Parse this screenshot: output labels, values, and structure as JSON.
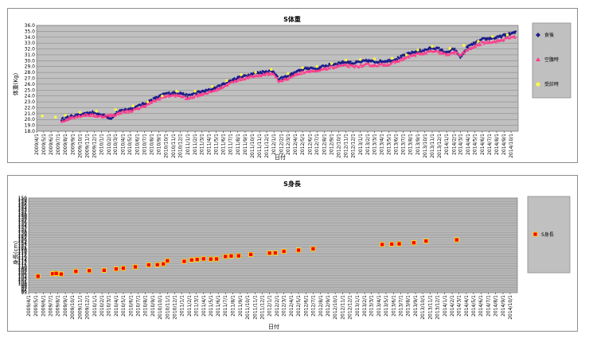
{
  "colors": {
    "plot_bg": "#c0c0c0",
    "grid": "#7f7f7f",
    "after_meal": "#1c1c8a",
    "fasting": "#ff3c8c",
    "visit": "#ffff3c",
    "height_fill": "#ff0000",
    "height_border": "#ffd700",
    "legend_bg": "#c0c0c0"
  },
  "x_tick_labels": [
    "2009/4/1",
    "2009/5/1",
    "2009/6/1",
    "2009/7/1",
    "2009/8/1",
    "2009/9/1",
    "2009/10/1",
    "2009/11/1",
    "2009/12/1",
    "2010/1/1",
    "2010/2/1",
    "2010/3/1",
    "2010/4/1",
    "2010/5/1",
    "2010/6/1",
    "2010/7/1",
    "2010/8/1",
    "2010/9/1",
    "2010/10/1",
    "2010/11/1",
    "2010/12/1",
    "2011/1/1",
    "2011/2/1",
    "2011/3/1",
    "2011/4/1",
    "2011/5/1",
    "2011/6/1",
    "2011/7/1",
    "2011/8/1",
    "2011/9/1",
    "2011/10/1",
    "2011/11/1",
    "2011/12/1",
    "2012/1/1",
    "2012/2/1",
    "2012/3/1",
    "2012/4/1",
    "2012/5/1",
    "2012/6/1",
    "2012/7/1",
    "2012/8/1",
    "2012/9/1",
    "2012/10/1",
    "2012/11/1",
    "2012/12/1",
    "2013/1/1",
    "2013/2/1",
    "2013/3/1",
    "2013/4/1",
    "2013/5/1",
    "2013/6/1",
    "2013/7/1",
    "2013/8/1",
    "2013/9/1",
    "2013/10/1",
    "2013/11/1",
    "2013/12/1",
    "2014/1/1",
    "2014/2/1",
    "2014/3/1",
    "2014/4/1",
    "2014/5/1",
    "2014/6/1",
    "2014/7/1",
    "2014/8/1",
    "2014/9/1",
    "2014/10/1"
  ],
  "chart_data": [
    {
      "type": "scatter",
      "title": "S体重",
      "xlabel": "日付",
      "ylabel": "体重(Kg)",
      "ylim": [
        18.0,
        36.0
      ],
      "y_ticks": [
        "18.0",
        "19.0",
        "20.0",
        "21.0",
        "22.0",
        "23.0",
        "24.0",
        "25.0",
        "26.0",
        "27.0",
        "28.0",
        "29.0",
        "30.0",
        "31.0",
        "32.0",
        "33.0",
        "34.0",
        "35.0",
        "36.0"
      ],
      "grid": true,
      "legend_position": "right",
      "x_range": [
        "2009/4/1",
        "2014/10/31"
      ],
      "series": [
        {
          "name": "食後",
          "marker": "diamond",
          "color": "#1c1c8a",
          "anchors": [
            [
              "2009/7/15",
              20.0
            ],
            [
              "2009/9/1",
              20.6
            ],
            [
              "2009/10/15",
              20.8
            ],
            [
              "2009/11/20",
              21.2
            ],
            [
              "2010/1/10",
              20.7
            ],
            [
              "2010/2/10",
              20.2
            ],
            [
              "2010/3/1",
              21.0
            ],
            [
              "2010/4/1",
              21.6
            ],
            [
              "2010/5/1",
              21.8
            ],
            [
              "2010/6/1",
              22.2
            ],
            [
              "2010/7/1",
              22.7
            ],
            [
              "2010/8/1",
              23.3
            ],
            [
              "2010/9/1",
              23.9
            ],
            [
              "2010/10/1",
              24.4
            ],
            [
              "2010/11/1",
              24.5
            ],
            [
              "2010/12/1",
              24.5
            ],
            [
              "2011/1/1",
              24.0
            ],
            [
              "2011/2/1",
              24.5
            ],
            [
              "2011/3/1",
              24.7
            ],
            [
              "2011/4/1",
              25.0
            ],
            [
              "2011/5/1",
              25.4
            ],
            [
              "2011/6/1",
              26.0
            ],
            [
              "2011/7/1",
              26.6
            ],
            [
              "2011/8/1",
              27.1
            ],
            [
              "2011/9/1",
              27.4
            ],
            [
              "2011/10/1",
              27.8
            ],
            [
              "2011/11/1",
              28.0
            ],
            [
              "2011/12/1",
              28.2
            ],
            [
              "2012/1/1",
              28.2
            ],
            [
              "2012/1/20",
              26.8
            ],
            [
              "2012/3/1",
              27.4
            ],
            [
              "2012/4/1",
              28.0
            ],
            [
              "2012/5/1",
              28.5
            ],
            [
              "2012/6/1",
              28.8
            ],
            [
              "2012/7/1",
              28.6
            ],
            [
              "2012/8/1",
              29.1
            ],
            [
              "2012/9/1",
              29.3
            ],
            [
              "2012/10/1",
              29.6
            ],
            [
              "2012/11/1",
              29.8
            ],
            [
              "2012/12/1",
              29.6
            ],
            [
              "2013/1/1",
              29.8
            ],
            [
              "2013/2/1",
              30.0
            ],
            [
              "2013/3/1",
              29.8
            ],
            [
              "2013/4/1",
              29.9
            ],
            [
              "2013/5/1",
              30.0
            ],
            [
              "2013/6/1",
              30.3
            ],
            [
              "2013/7/1",
              30.8
            ],
            [
              "2013/8/1",
              31.3
            ],
            [
              "2013/9/1",
              31.6
            ],
            [
              "2013/10/1",
              31.8
            ],
            [
              "2013/11/1",
              32.2
            ],
            [
              "2013/12/1",
              32.0
            ],
            [
              "2014/1/1",
              31.3
            ],
            [
              "2014/2/1",
              32.0
            ],
            [
              "2014/3/1",
              30.6
            ],
            [
              "2014/4/1",
              32.4
            ],
            [
              "2014/5/1",
              33.0
            ],
            [
              "2014/6/1",
              33.6
            ],
            [
              "2014/7/1",
              33.8
            ],
            [
              "2014/8/1",
              33.9
            ],
            [
              "2014/9/1",
              34.3
            ],
            [
              "2014/10/1",
              34.6
            ],
            [
              "2014/10/20",
              34.8
            ]
          ]
        },
        {
          "name": "空腹時",
          "marker": "triangle",
          "color": "#ff3c8c",
          "anchors": [
            [
              "2009/7/15",
              19.6
            ],
            [
              "2009/9/1",
              20.4
            ],
            [
              "2009/11/1",
              20.8
            ],
            [
              "2010/1/1",
              20.5
            ],
            [
              "2010/3/1",
              20.8
            ],
            [
              "2010/4/1",
              21.3
            ],
            [
              "2010/5/1",
              21.4
            ],
            [
              "2010/6/1",
              21.8
            ],
            [
              "2010/7/1",
              22.3
            ],
            [
              "2010/8/1",
              22.9
            ],
            [
              "2010/9/1",
              23.5
            ],
            [
              "2010/10/1",
              24.0
            ],
            [
              "2010/11/1",
              24.1
            ],
            [
              "2010/12/1",
              24.0
            ],
            [
              "2011/1/1",
              23.5
            ],
            [
              "2011/2/1",
              24.0
            ],
            [
              "2011/3/1",
              24.3
            ],
            [
              "2011/4/1",
              24.6
            ],
            [
              "2011/5/1",
              25.0
            ],
            [
              "2011/6/1",
              25.6
            ],
            [
              "2011/7/1",
              26.2
            ],
            [
              "2011/8/1",
              26.7
            ],
            [
              "2011/9/1",
              27.0
            ],
            [
              "2011/10/1",
              27.3
            ],
            [
              "2011/11/1",
              27.5
            ],
            [
              "2011/12/1",
              27.7
            ],
            [
              "2012/1/1",
              27.8
            ],
            [
              "2012/1/20",
              26.4
            ],
            [
              "2012/3/1",
              27.0
            ],
            [
              "2012/4/1",
              27.6
            ],
            [
              "2012/5/1",
              28.0
            ],
            [
              "2012/6/1",
              28.3
            ],
            [
              "2012/7/1",
              28.1
            ],
            [
              "2012/8/1",
              28.6
            ],
            [
              "2012/9/1",
              28.8
            ],
            [
              "2012/10/1",
              29.1
            ],
            [
              "2012/11/1",
              29.2
            ],
            [
              "2012/12/1",
              29.0
            ],
            [
              "2013/1/1",
              29.1
            ],
            [
              "2013/2/1",
              29.3
            ],
            [
              "2013/3/1",
              29.2
            ],
            [
              "2013/4/1",
              29.3
            ],
            [
              "2013/5/1",
              29.4
            ],
            [
              "2013/6/1",
              29.8
            ],
            [
              "2013/7/1",
              30.3
            ],
            [
              "2013/8/1",
              30.8
            ],
            [
              "2013/9/1",
              31.1
            ],
            [
              "2013/10/1",
              31.3
            ],
            [
              "2013/11/1",
              31.6
            ],
            [
              "2013/12/1",
              31.4
            ],
            [
              "2014/1/1",
              31.0
            ],
            [
              "2014/2/1",
              31.4
            ],
            [
              "2014/3/1",
              31.0
            ],
            [
              "2014/4/1",
              31.8
            ],
            [
              "2014/5/1",
              32.4
            ],
            [
              "2014/6/1",
              33.0
            ],
            [
              "2014/7/1",
              33.2
            ],
            [
              "2014/8/1",
              33.3
            ],
            [
              "2014/9/1",
              33.6
            ],
            [
              "2014/10/1",
              34.0
            ],
            [
              "2014/10/20",
              34.1
            ]
          ]
        },
        {
          "name": "受診時",
          "marker": "circle",
          "color": "#ffff3c",
          "points": [
            [
              "2009/4/25",
              20.6
            ],
            [
              "2009/6/20",
              20.4
            ],
            [
              "2009/8/1",
              20.7
            ],
            [
              "2009/10/1",
              21.2
            ],
            [
              "2009/12/10",
              21.4
            ],
            [
              "2010/3/1",
              21.7
            ],
            [
              "2010/5/15",
              22.3
            ],
            [
              "2010/7/15",
              23.0
            ],
            [
              "2010/9/15",
              24.0
            ],
            [
              "2010/11/15",
              24.8
            ],
            [
              "2011/2/1",
              24.8
            ],
            [
              "2011/4/15",
              25.6
            ],
            [
              "2011/6/15",
              26.6
            ],
            [
              "2011/8/15",
              27.6
            ],
            [
              "2011/10/15",
              28.0
            ],
            [
              "2011/12/20",
              28.5
            ],
            [
              "2012/3/1",
              27.8
            ],
            [
              "2012/5/1",
              28.8
            ],
            [
              "2012/7/1",
              29.0
            ],
            [
              "2012/9/1",
              29.5
            ],
            [
              "2012/11/1",
              30.1
            ],
            [
              "2013/1/1",
              30.2
            ],
            [
              "2013/3/1",
              30.3
            ],
            [
              "2013/5/15",
              30.4
            ],
            [
              "2013/7/15",
              31.0
            ],
            [
              "2013/9/1",
              31.8
            ],
            [
              "2013/11/1",
              32.4
            ],
            [
              "2014/1/15",
              32.1
            ],
            [
              "2014/3/15",
              32.6
            ],
            [
              "2014/5/15",
              33.3
            ],
            [
              "2014/7/15",
              34.1
            ],
            [
              "2014/9/15",
              34.4
            ]
          ]
        }
      ]
    },
    {
      "type": "scatter",
      "title": "S身長",
      "xlabel": "日付",
      "ylabel": "身長(cm)",
      "ylim": [
        95,
        150
      ],
      "y_ticks_raw": "95 96 97 98 99 100 101 102 103 104 105 106 107 108 109 110 111 112 113 114 115 116 117 118 119 120 121 122 123 124 125 126 127 128 129 130 131 132 133 134 135 136 137 138 139 140 141 142 143 144 145 146 147 148 149 150",
      "grid": true,
      "legend_position": "right",
      "x_range": [
        "2009/4/1",
        "2014/10/31"
      ],
      "series": [
        {
          "name": "S身長",
          "marker": "square",
          "color": "#ff0000",
          "points": [
            [
              "2009/5/10",
              104.5
            ],
            [
              "2009/7/10",
              106.0
            ],
            [
              "2009/7/25",
              106.2
            ],
            [
              "2009/8/15",
              105.8
            ],
            [
              "2009/10/15",
              107.4
            ],
            [
              "2009/12/10",
              107.8
            ],
            [
              "2010/2/10",
              108.0
            ],
            [
              "2010/4/1",
              108.8
            ],
            [
              "2010/5/1",
              109.2
            ],
            [
              "2010/6/20",
              110.0
            ],
            [
              "2010/8/15",
              111.1
            ],
            [
              "2010/9/20",
              111.2
            ],
            [
              "2010/10/15",
              111.7
            ],
            [
              "2010/11/1",
              113.5
            ],
            [
              "2011/1/10",
              113.2
            ],
            [
              "2011/2/10",
              114.0
            ],
            [
              "2011/3/5",
              114.3
            ],
            [
              "2011/4/1",
              114.7
            ],
            [
              "2011/5/1",
              114.5
            ],
            [
              "2011/5/25",
              114.6
            ],
            [
              "2011/7/1",
              116.0
            ],
            [
              "2011/7/25",
              116.3
            ],
            [
              "2011/8/25",
              116.4
            ],
            [
              "2011/10/15",
              117.2
            ],
            [
              "2012/1/1",
              118.0
            ],
            [
              "2012/1/25",
              118.1
            ],
            [
              "2012/3/1",
              119.0
            ],
            [
              "2012/5/1",
              119.7
            ],
            [
              "2012/7/1",
              120.5
            ],
            [
              "2013/4/15",
              123.0
            ],
            [
              "2013/5/25",
              123.2
            ],
            [
              "2013/6/25",
              123.4
            ],
            [
              "2013/8/25",
              124.0
            ],
            [
              "2013/10/15",
              125.0
            ],
            [
              "2014/2/20",
              125.7
            ]
          ]
        }
      ]
    }
  ]
}
